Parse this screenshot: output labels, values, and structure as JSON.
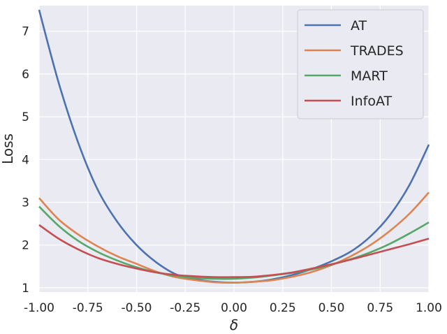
{
  "chart_data": {
    "type": "line",
    "title": "",
    "xlabel": "δ",
    "ylabel": "Loss",
    "xlim": [
      -1.0,
      1.0
    ],
    "ylim": [
      0.9,
      7.6
    ],
    "xticks": [
      -1.0,
      -0.75,
      -0.5,
      -0.25,
      0.0,
      0.25,
      0.5,
      0.75,
      1.0
    ],
    "xtick_labels": [
      "-1.00",
      "-0.75",
      "-0.50",
      "-0.25",
      "0.00",
      "0.25",
      "0.50",
      "0.75",
      "1.00"
    ],
    "yticks": [
      1,
      2,
      3,
      4,
      5,
      6,
      7
    ],
    "ytick_labels": [
      "1",
      "2",
      "3",
      "4",
      "5",
      "6",
      "7"
    ],
    "grid": true,
    "background": "#eaeaf2",
    "legend_position": "top-right",
    "x": [
      -1.0,
      -0.9,
      -0.8,
      -0.7,
      -0.6,
      -0.5,
      -0.4,
      -0.3,
      -0.2,
      -0.1,
      0.0,
      0.1,
      0.2,
      0.3,
      0.4,
      0.5,
      0.6,
      0.7,
      0.8,
      0.9,
      1.0
    ],
    "series": [
      {
        "name": "AT",
        "color": "#4c72b0",
        "values": [
          7.5,
          5.8,
          4.4,
          3.3,
          2.55,
          2.0,
          1.6,
          1.32,
          1.2,
          1.14,
          1.12,
          1.14,
          1.2,
          1.3,
          1.44,
          1.62,
          1.85,
          2.2,
          2.7,
          3.4,
          4.35
        ]
      },
      {
        "name": "TRADES",
        "color": "#dd8452",
        "values": [
          3.1,
          2.6,
          2.25,
          1.97,
          1.74,
          1.56,
          1.38,
          1.25,
          1.18,
          1.13,
          1.12,
          1.14,
          1.18,
          1.26,
          1.37,
          1.53,
          1.74,
          2.0,
          2.33,
          2.73,
          3.23
        ]
      },
      {
        "name": "MART",
        "color": "#55a868",
        "values": [
          2.9,
          2.45,
          2.1,
          1.84,
          1.64,
          1.48,
          1.36,
          1.28,
          1.23,
          1.21,
          1.21,
          1.24,
          1.29,
          1.35,
          1.43,
          1.54,
          1.67,
          1.83,
          2.03,
          2.27,
          2.53
        ]
      },
      {
        "name": "InfoAT",
        "color": "#c44e52",
        "values": [
          2.47,
          2.15,
          1.9,
          1.7,
          1.56,
          1.45,
          1.36,
          1.3,
          1.27,
          1.25,
          1.25,
          1.26,
          1.3,
          1.36,
          1.45,
          1.55,
          1.66,
          1.78,
          1.9,
          2.02,
          2.15
        ]
      }
    ]
  }
}
